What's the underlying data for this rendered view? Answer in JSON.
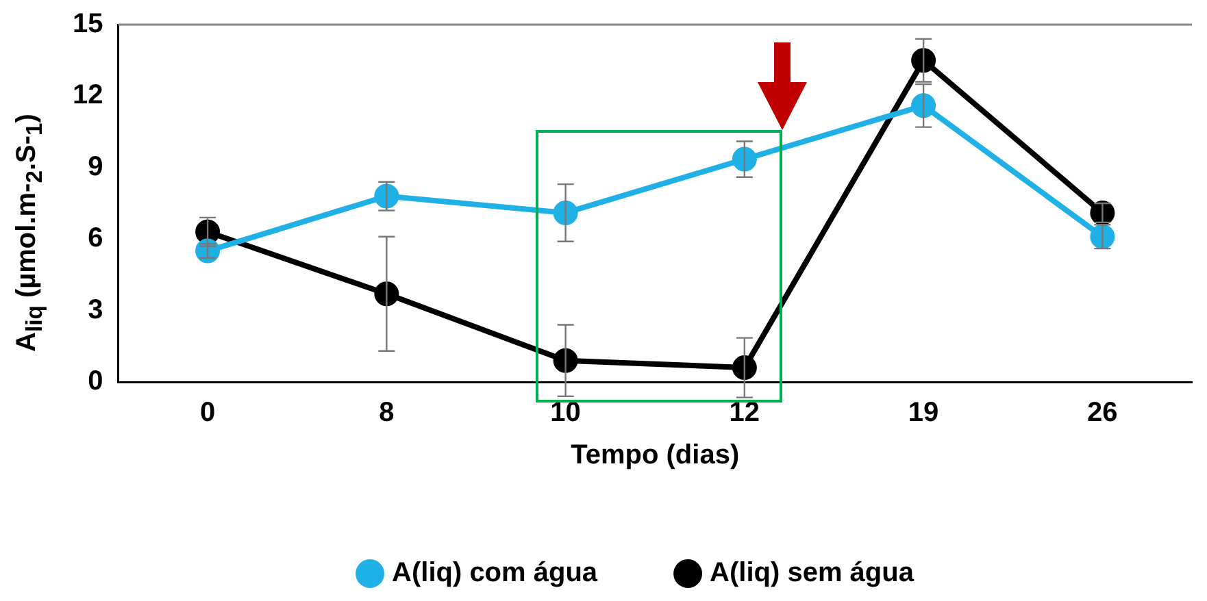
{
  "chart_data": {
    "type": "line",
    "xlabel": "Tempo (dias)",
    "ylabel": "A$_{liq}$ (µmol.m-$_{2}$.S-$_{1}$)",
    "categories": [
      "0",
      "8",
      "10",
      "12",
      "19",
      "26"
    ],
    "series": [
      {
        "name": "A(liq) com água",
        "color": "#1fb0e6",
        "values": [
          5.5,
          7.8,
          7.1,
          9.35,
          11.6,
          6.1
        ],
        "errors": [
          0.3,
          0.6,
          1.2,
          0.75,
          0.9,
          0.5
        ]
      },
      {
        "name": "A(liq) sem água",
        "color": "#000000",
        "values": [
          6.3,
          3.7,
          0.9,
          0.6,
          13.5,
          7.1
        ],
        "errors": [
          0.6,
          2.4,
          1.5,
          1.25,
          0.9,
          0.4
        ]
      }
    ],
    "ylim": [
      0,
      15
    ],
    "yticks": [
      0,
      3,
      6,
      9,
      12,
      15
    ],
    "grid": false,
    "legend": "bottom",
    "marker": "circle",
    "line_style": "solid"
  }
}
